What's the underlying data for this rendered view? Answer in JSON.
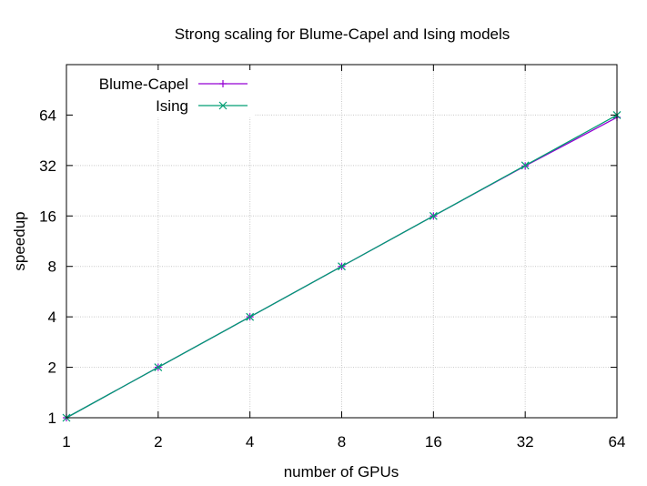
{
  "chart_data": {
    "type": "line",
    "title": "Strong scaling for Blume-Capel and Ising models",
    "xlabel": "number of GPUs",
    "ylabel": "speedup",
    "x_scale": "log2",
    "y_scale": "log2",
    "xlim": [
      1,
      64
    ],
    "ylim": [
      1,
      128
    ],
    "x_ticks": [
      "1",
      "2",
      "4",
      "8",
      "16",
      "32",
      "64"
    ],
    "y_ticks": [
      "1",
      "2",
      "4",
      "8",
      "16",
      "32",
      "64"
    ],
    "grid": true,
    "legend_position": "top-left",
    "x": [
      1,
      2,
      4,
      8,
      16,
      32,
      64
    ],
    "series": [
      {
        "name": "Blume-Capel",
        "marker": "+",
        "color": "#9400d3",
        "values": [
          1,
          2,
          4,
          8,
          16,
          31.8,
          62
        ]
      },
      {
        "name": "Ising",
        "marker": "x",
        "color": "#009e73",
        "values": [
          1,
          2,
          4,
          8,
          16,
          32,
          64
        ]
      }
    ]
  }
}
